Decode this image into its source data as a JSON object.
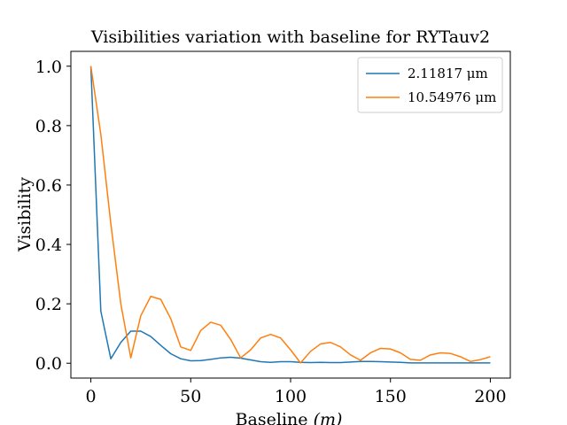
{
  "chart_data": {
    "type": "line",
    "title": "Visibilities variation with baseline for RYTauv2",
    "xlabel": "Baseline",
    "xlabel_unit": "(m)",
    "ylabel": "Visibility",
    "xlim": [
      -10,
      210
    ],
    "ylim": [
      -0.05,
      1.05
    ],
    "xticks": [
      0,
      50,
      100,
      150,
      200
    ],
    "yticks": [
      0.0,
      0.2,
      0.4,
      0.6,
      0.8,
      1.0
    ],
    "xtick_labels": [
      "0",
      "50",
      "100",
      "150",
      "200"
    ],
    "ytick_labels": [
      "0.0",
      "0.2",
      "0.4",
      "0.6",
      "0.8",
      "1.0"
    ],
    "grid": false,
    "legend_position": "top-right",
    "x": [
      0,
      5,
      10,
      15,
      20,
      25,
      30,
      35,
      40,
      45,
      50,
      55,
      60,
      65,
      70,
      75,
      80,
      85,
      90,
      95,
      100,
      105,
      110,
      115,
      120,
      125,
      130,
      135,
      140,
      145,
      150,
      155,
      160,
      165,
      170,
      175,
      180,
      185,
      190,
      195,
      200
    ],
    "series": [
      {
        "name": "2.11817 μm",
        "color": "#1f77b4",
        "values": [
          1.0,
          0.175,
          0.015,
          0.07,
          0.108,
          0.108,
          0.09,
          0.06,
          0.032,
          0.015,
          0.008,
          0.009,
          0.013,
          0.018,
          0.02,
          0.017,
          0.011,
          0.005,
          0.003,
          0.005,
          0.005,
          0.003,
          0.002,
          0.003,
          0.002,
          0.002,
          0.004,
          0.006,
          0.006,
          0.005,
          0.004,
          0.003,
          0.001,
          0.001,
          0.001,
          0.001,
          0.001,
          0.001,
          0.001,
          0.001,
          0.001
        ]
      },
      {
        "name": "10.54976 μm",
        "color": "#ff7f0e",
        "values": [
          1.0,
          0.77,
          0.47,
          0.2,
          0.018,
          0.16,
          0.225,
          0.215,
          0.15,
          0.055,
          0.043,
          0.11,
          0.138,
          0.128,
          0.08,
          0.018,
          0.045,
          0.085,
          0.097,
          0.085,
          0.045,
          0.001,
          0.04,
          0.065,
          0.07,
          0.055,
          0.028,
          0.01,
          0.035,
          0.05,
          0.048,
          0.035,
          0.013,
          0.01,
          0.028,
          0.035,
          0.033,
          0.022,
          0.006,
          0.012,
          0.022
        ]
      }
    ]
  }
}
